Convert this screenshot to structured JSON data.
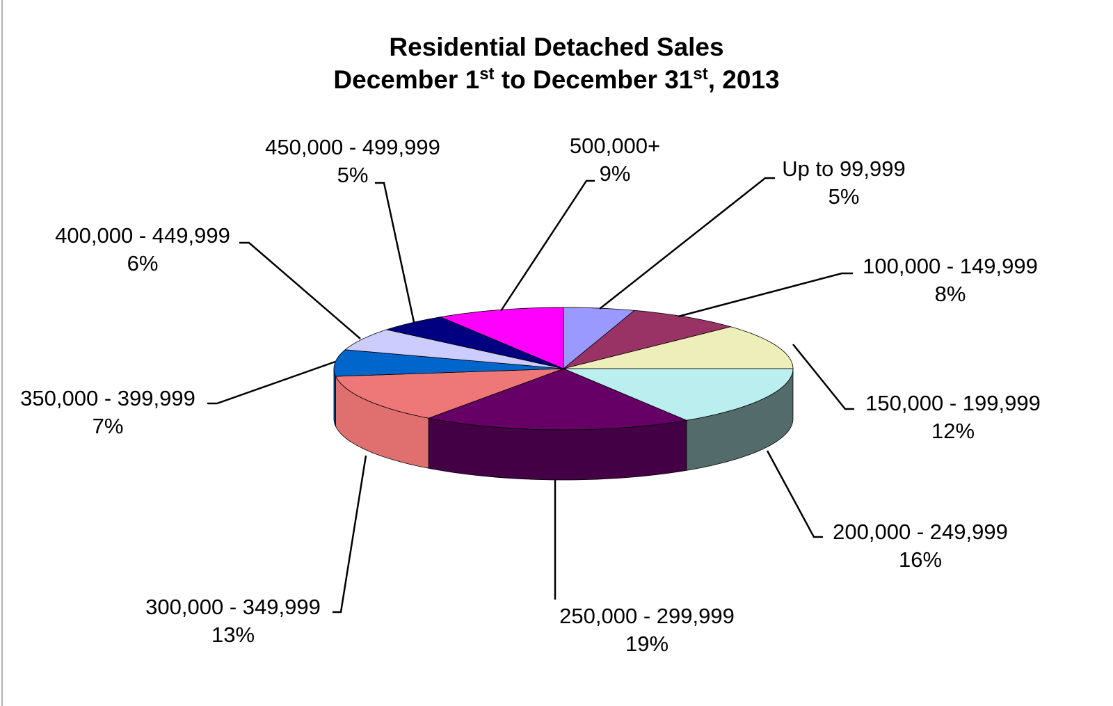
{
  "chart_data": {
    "type": "pie",
    "title": {
      "line1": "Residential Detached Sales",
      "line2": {
        "part1": "December 1",
        "sup1": "st",
        "part2": " to December 31",
        "sup2": "st",
        "part3": ", 2013"
      }
    },
    "slices": [
      {
        "label": "Up to 99,999",
        "percent": "5%",
        "value": 5,
        "color": "#9999ff",
        "side_color": "#6a6ab8"
      },
      {
        "label": "100,000 - 149,999",
        "percent": "8%",
        "value": 8,
        "color": "#993366",
        "side_color": "#6b2347"
      },
      {
        "label": "150,000 - 199,999",
        "percent": "12%",
        "value": 12,
        "color": "#eeeebb",
        "side_color": "#a8a883"
      },
      {
        "label": "200,000 - 249,999",
        "percent": "16%",
        "value": 16,
        "color": "#bbeeee",
        "side_color": "#546b6b"
      },
      {
        "label": "250,000 - 299,999",
        "percent": "19%",
        "value": 19,
        "color": "#660066",
        "side_color": "#440044"
      },
      {
        "label": "300,000 - 349,999",
        "percent": "13%",
        "value": 13,
        "color": "#ee7777",
        "side_color": "#e07070"
      },
      {
        "label": "350,000 - 399,999",
        "percent": "7%",
        "value": 7,
        "color": "#0066cc",
        "side_color": "#00478f"
      },
      {
        "label": "400,000 - 449,999",
        "percent": "6%",
        "value": 6,
        "color": "#ccccff",
        "side_color": "#8f8fb3"
      },
      {
        "label": "450,000 - 499,999",
        "percent": "5%",
        "value": 5,
        "color": "#000080",
        "side_color": "#00005a"
      },
      {
        "label": "500,000+",
        "percent": "9%",
        "value": 9,
        "color": "#ff00ff",
        "side_color": "#b300b3"
      }
    ]
  }
}
